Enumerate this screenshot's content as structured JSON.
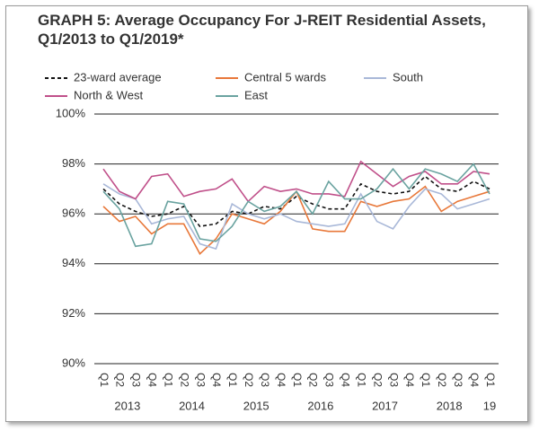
{
  "chart_data": {
    "type": "line",
    "title": "GRAPH 5: Average Occupancy For J-REIT Residential Assets, Q1/2013 to Q1/2019*",
    "categories": [
      "Q1",
      "Q2",
      "Q3",
      "Q4",
      "Q1",
      "Q2",
      "Q3",
      "Q4",
      "Q1",
      "Q2",
      "Q3",
      "Q4",
      "Q1",
      "Q2",
      "Q3",
      "Q4",
      "Q1",
      "Q2",
      "Q3",
      "Q4",
      "Q1",
      "Q2",
      "Q3",
      "Q4",
      "Q1"
    ],
    "x_groups": [
      "2013",
      "2014",
      "2015",
      "2016",
      "2017",
      "2018",
      "19"
    ],
    "ylim": [
      90,
      100
    ],
    "yticks": [
      {
        "value": 90,
        "label": "90%"
      },
      {
        "value": 92,
        "label": "92%"
      },
      {
        "value": 94,
        "label": "94%"
      },
      {
        "value": 96,
        "label": "96%"
      },
      {
        "value": 98,
        "label": "98%"
      },
      {
        "value": 100,
        "label": "100%"
      }
    ],
    "grid": true,
    "series": [
      {
        "name": "23-ward average",
        "color": "#111111",
        "dashed": true,
        "values": [
          97.0,
          96.4,
          96.1,
          95.9,
          96.0,
          96.3,
          95.5,
          95.6,
          96.1,
          96.0,
          96.3,
          96.2,
          96.7,
          96.4,
          96.2,
          96.2,
          97.2,
          96.9,
          96.8,
          96.9,
          97.5,
          97.0,
          96.9,
          97.3,
          97.0
        ]
      },
      {
        "name": "Central 5 wards",
        "color": "#e8783a",
        "dashed": false,
        "values": [
          96.3,
          95.7,
          95.9,
          95.2,
          95.6,
          95.6,
          94.4,
          95.0,
          96.0,
          95.8,
          95.6,
          96.1,
          96.9,
          95.4,
          95.3,
          95.3,
          96.5,
          96.3,
          96.5,
          96.6,
          97.1,
          96.1,
          96.5,
          96.7,
          96.9
        ]
      },
      {
        "name": "South",
        "color": "#a9b8d8",
        "dashed": false,
        "values": [
          97.2,
          96.8,
          96.6,
          95.6,
          95.8,
          95.9,
          94.8,
          94.6,
          96.4,
          96.0,
          95.8,
          96.0,
          95.7,
          95.6,
          95.5,
          95.6,
          96.8,
          95.7,
          95.4,
          96.3,
          97.0,
          96.8,
          96.2,
          96.4,
          96.6
        ]
      },
      {
        "name": "North & West",
        "color": "#c0508a",
        "dashed": false,
        "values": [
          97.8,
          96.9,
          96.6,
          97.5,
          97.6,
          96.7,
          96.9,
          97.0,
          97.4,
          96.5,
          97.1,
          96.9,
          97.0,
          96.8,
          96.8,
          96.7,
          98.1,
          97.6,
          97.1,
          97.5,
          97.7,
          97.2,
          97.2,
          97.7,
          97.6
        ]
      },
      {
        "name": "East",
        "color": "#6aa3a0",
        "dashed": false,
        "values": [
          96.9,
          96.2,
          94.7,
          94.8,
          96.5,
          96.4,
          95.0,
          94.9,
          95.5,
          96.5,
          96.1,
          96.3,
          96.9,
          96.0,
          97.3,
          96.6,
          96.6,
          97.0,
          97.8,
          97.0,
          97.8,
          97.6,
          97.3,
          98.0,
          96.8
        ]
      }
    ]
  }
}
